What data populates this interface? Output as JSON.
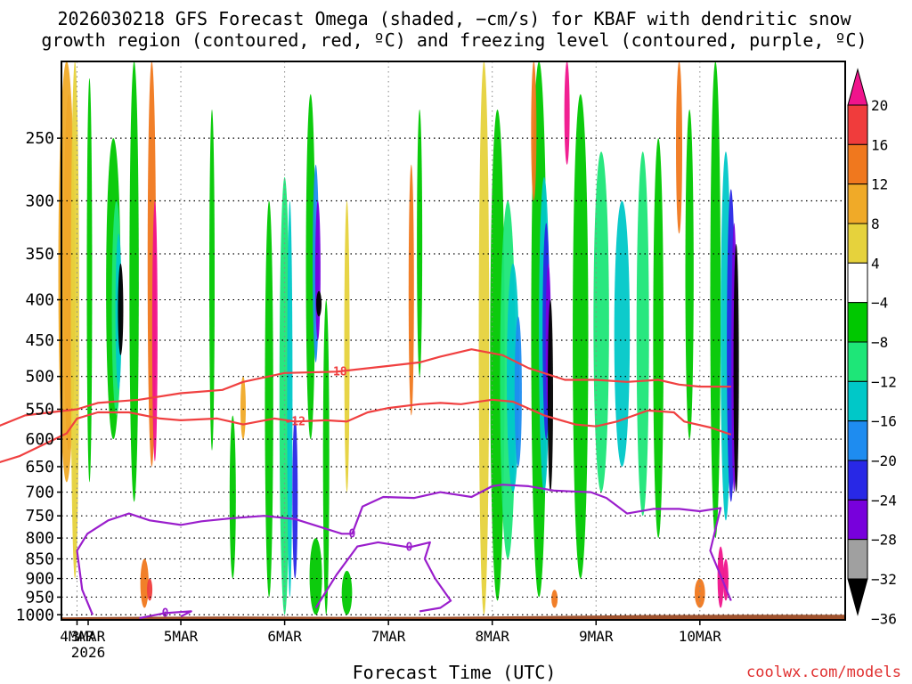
{
  "chart_data": {
    "type": "heatmap",
    "title_lines": [
      "2026030218 GFS Forecast Omega (shaded, −cm/s) for KBAF with dendritic snow",
      "growth region (contoured, red, ºC) and freezing level (contoured, purple, ºC)"
    ],
    "xlabel": "Forecast Time (UTC)",
    "credit": "coolwx.com/models",
    "y_axis": {
      "type": "log",
      "ylim": [
        1015,
        200
      ],
      "ticks": [
        250,
        300,
        350,
        400,
        450,
        500,
        550,
        600,
        650,
        700,
        750,
        800,
        850,
        900,
        950,
        1000
      ]
    },
    "x_axis": {
      "xlim": [
        1.85,
        9.4
      ],
      "ticks": [
        {
          "x": 1,
          "label": "3MAR",
          "sub": "2026"
        },
        {
          "x": 2,
          "label": "4MAR"
        },
        {
          "x": 3,
          "label": "5MAR"
        },
        {
          "x": 4,
          "label": "6MAR"
        },
        {
          "x": 5,
          "label": "7MAR"
        },
        {
          "x": 6,
          "label": "8MAR"
        },
        {
          "x": 7,
          "label": "9MAR"
        },
        {
          "x": 8,
          "label": "10MAR"
        }
      ]
    },
    "colorbar": {
      "labels": [
        "20",
        "16",
        "12",
        "8",
        "4",
        "−4",
        "−8",
        "−12",
        "−16",
        "−20",
        "−24",
        "−28",
        "−32",
        "−36"
      ],
      "colors": [
        "#f0148c",
        "#f03c3c",
        "#f0781e",
        "#f0aa28",
        "#e6d23c",
        "#ffffff",
        "#00c800",
        "#1ee678",
        "#00c8c8",
        "#1e8cf0",
        "#2828e6",
        "#7800dc",
        "#a0a0a0",
        "#000000"
      ]
    },
    "contours": [
      {
        "label": "-18",
        "color": "#f04040",
        "points": [
          [
            0.85,
            600
          ],
          [
            1.1,
            588
          ],
          [
            1.5,
            560
          ],
          [
            2.0,
            550
          ],
          [
            2.2,
            540
          ],
          [
            2.6,
            535
          ],
          [
            3.0,
            525
          ],
          [
            3.4,
            520
          ],
          [
            3.6,
            508
          ],
          [
            4.0,
            495
          ],
          [
            4.5,
            493
          ],
          [
            5.0,
            485
          ],
          [
            5.3,
            480
          ],
          [
            5.5,
            472
          ],
          [
            5.8,
            462
          ],
          [
            6.1,
            470
          ],
          [
            6.35,
            488
          ],
          [
            6.7,
            505
          ],
          [
            7.0,
            505
          ],
          [
            7.3,
            508
          ],
          [
            7.6,
            505
          ],
          [
            7.8,
            512
          ],
          [
            8.0,
            515
          ],
          [
            8.3,
            515
          ]
        ]
      },
      {
        "label": "-12",
        "color": "#f04040",
        "points": [
          [
            0.85,
            900
          ],
          [
            0.95,
            800
          ],
          [
            1.05,
            700
          ],
          [
            1.2,
            645
          ],
          [
            1.45,
            630
          ],
          [
            1.9,
            590
          ],
          [
            2.0,
            565
          ],
          [
            2.2,
            555
          ],
          [
            2.5,
            555
          ],
          [
            2.8,
            565
          ],
          [
            3.0,
            568
          ],
          [
            3.35,
            565
          ],
          [
            3.6,
            575
          ],
          [
            3.9,
            565
          ],
          [
            4.1,
            570
          ],
          [
            4.4,
            568
          ],
          [
            4.6,
            570
          ],
          [
            4.8,
            555
          ],
          [
            5.0,
            548
          ],
          [
            5.3,
            542
          ],
          [
            5.5,
            540
          ],
          [
            5.7,
            542
          ],
          [
            6.0,
            535
          ],
          [
            6.2,
            538
          ],
          [
            6.5,
            560
          ],
          [
            6.8,
            575
          ],
          [
            7.0,
            578
          ],
          [
            7.2,
            570
          ],
          [
            7.5,
            552
          ],
          [
            7.75,
            555
          ],
          [
            7.85,
            570
          ],
          [
            8.1,
            580
          ],
          [
            8.3,
            592
          ]
        ]
      },
      {
        "label": "0",
        "color": "#9a1ecc",
        "points": [
          [
            2.15,
            1000
          ],
          [
            2.05,
            930
          ],
          [
            2.0,
            830
          ],
          [
            2.1,
            790
          ],
          [
            2.3,
            760
          ],
          [
            2.5,
            745
          ],
          [
            2.7,
            760
          ],
          [
            3.0,
            770
          ],
          [
            3.2,
            762
          ],
          [
            3.5,
            755
          ],
          [
            3.8,
            750
          ],
          [
            4.1,
            757
          ],
          [
            4.35,
            775
          ],
          [
            4.55,
            790
          ],
          [
            4.65,
            790
          ],
          [
            4.75,
            730
          ],
          [
            4.95,
            710
          ],
          [
            5.25,
            712
          ],
          [
            5.5,
            700
          ],
          [
            5.8,
            710
          ],
          [
            6.0,
            688
          ],
          [
            6.1,
            685
          ],
          [
            6.35,
            688
          ],
          [
            6.6,
            697
          ],
          [
            6.95,
            700
          ],
          [
            7.1,
            712
          ],
          [
            7.3,
            745
          ],
          [
            7.55,
            735
          ],
          [
            7.8,
            735
          ],
          [
            8.0,
            740
          ],
          [
            8.2,
            733
          ],
          [
            8.1,
            830
          ],
          [
            8.3,
            960
          ]
        ]
      },
      {
        "label": "0",
        "color": "#9a1ecc",
        "points": [
          [
            4.3,
            980
          ],
          [
            4.5,
            890
          ],
          [
            4.7,
            820
          ],
          [
            4.9,
            810
          ],
          [
            5.2,
            822
          ],
          [
            5.4,
            810
          ],
          [
            5.35,
            850
          ],
          [
            5.45,
            900
          ],
          [
            5.6,
            960
          ],
          [
            5.5,
            980
          ],
          [
            5.3,
            990
          ]
        ]
      },
      {
        "label": "0",
        "color": "#9a1ecc",
        "points": [
          [
            2.6,
            1010
          ],
          [
            2.85,
            995
          ],
          [
            3.1,
            990
          ],
          [
            3.0,
            1005
          ]
        ]
      }
    ]
  }
}
